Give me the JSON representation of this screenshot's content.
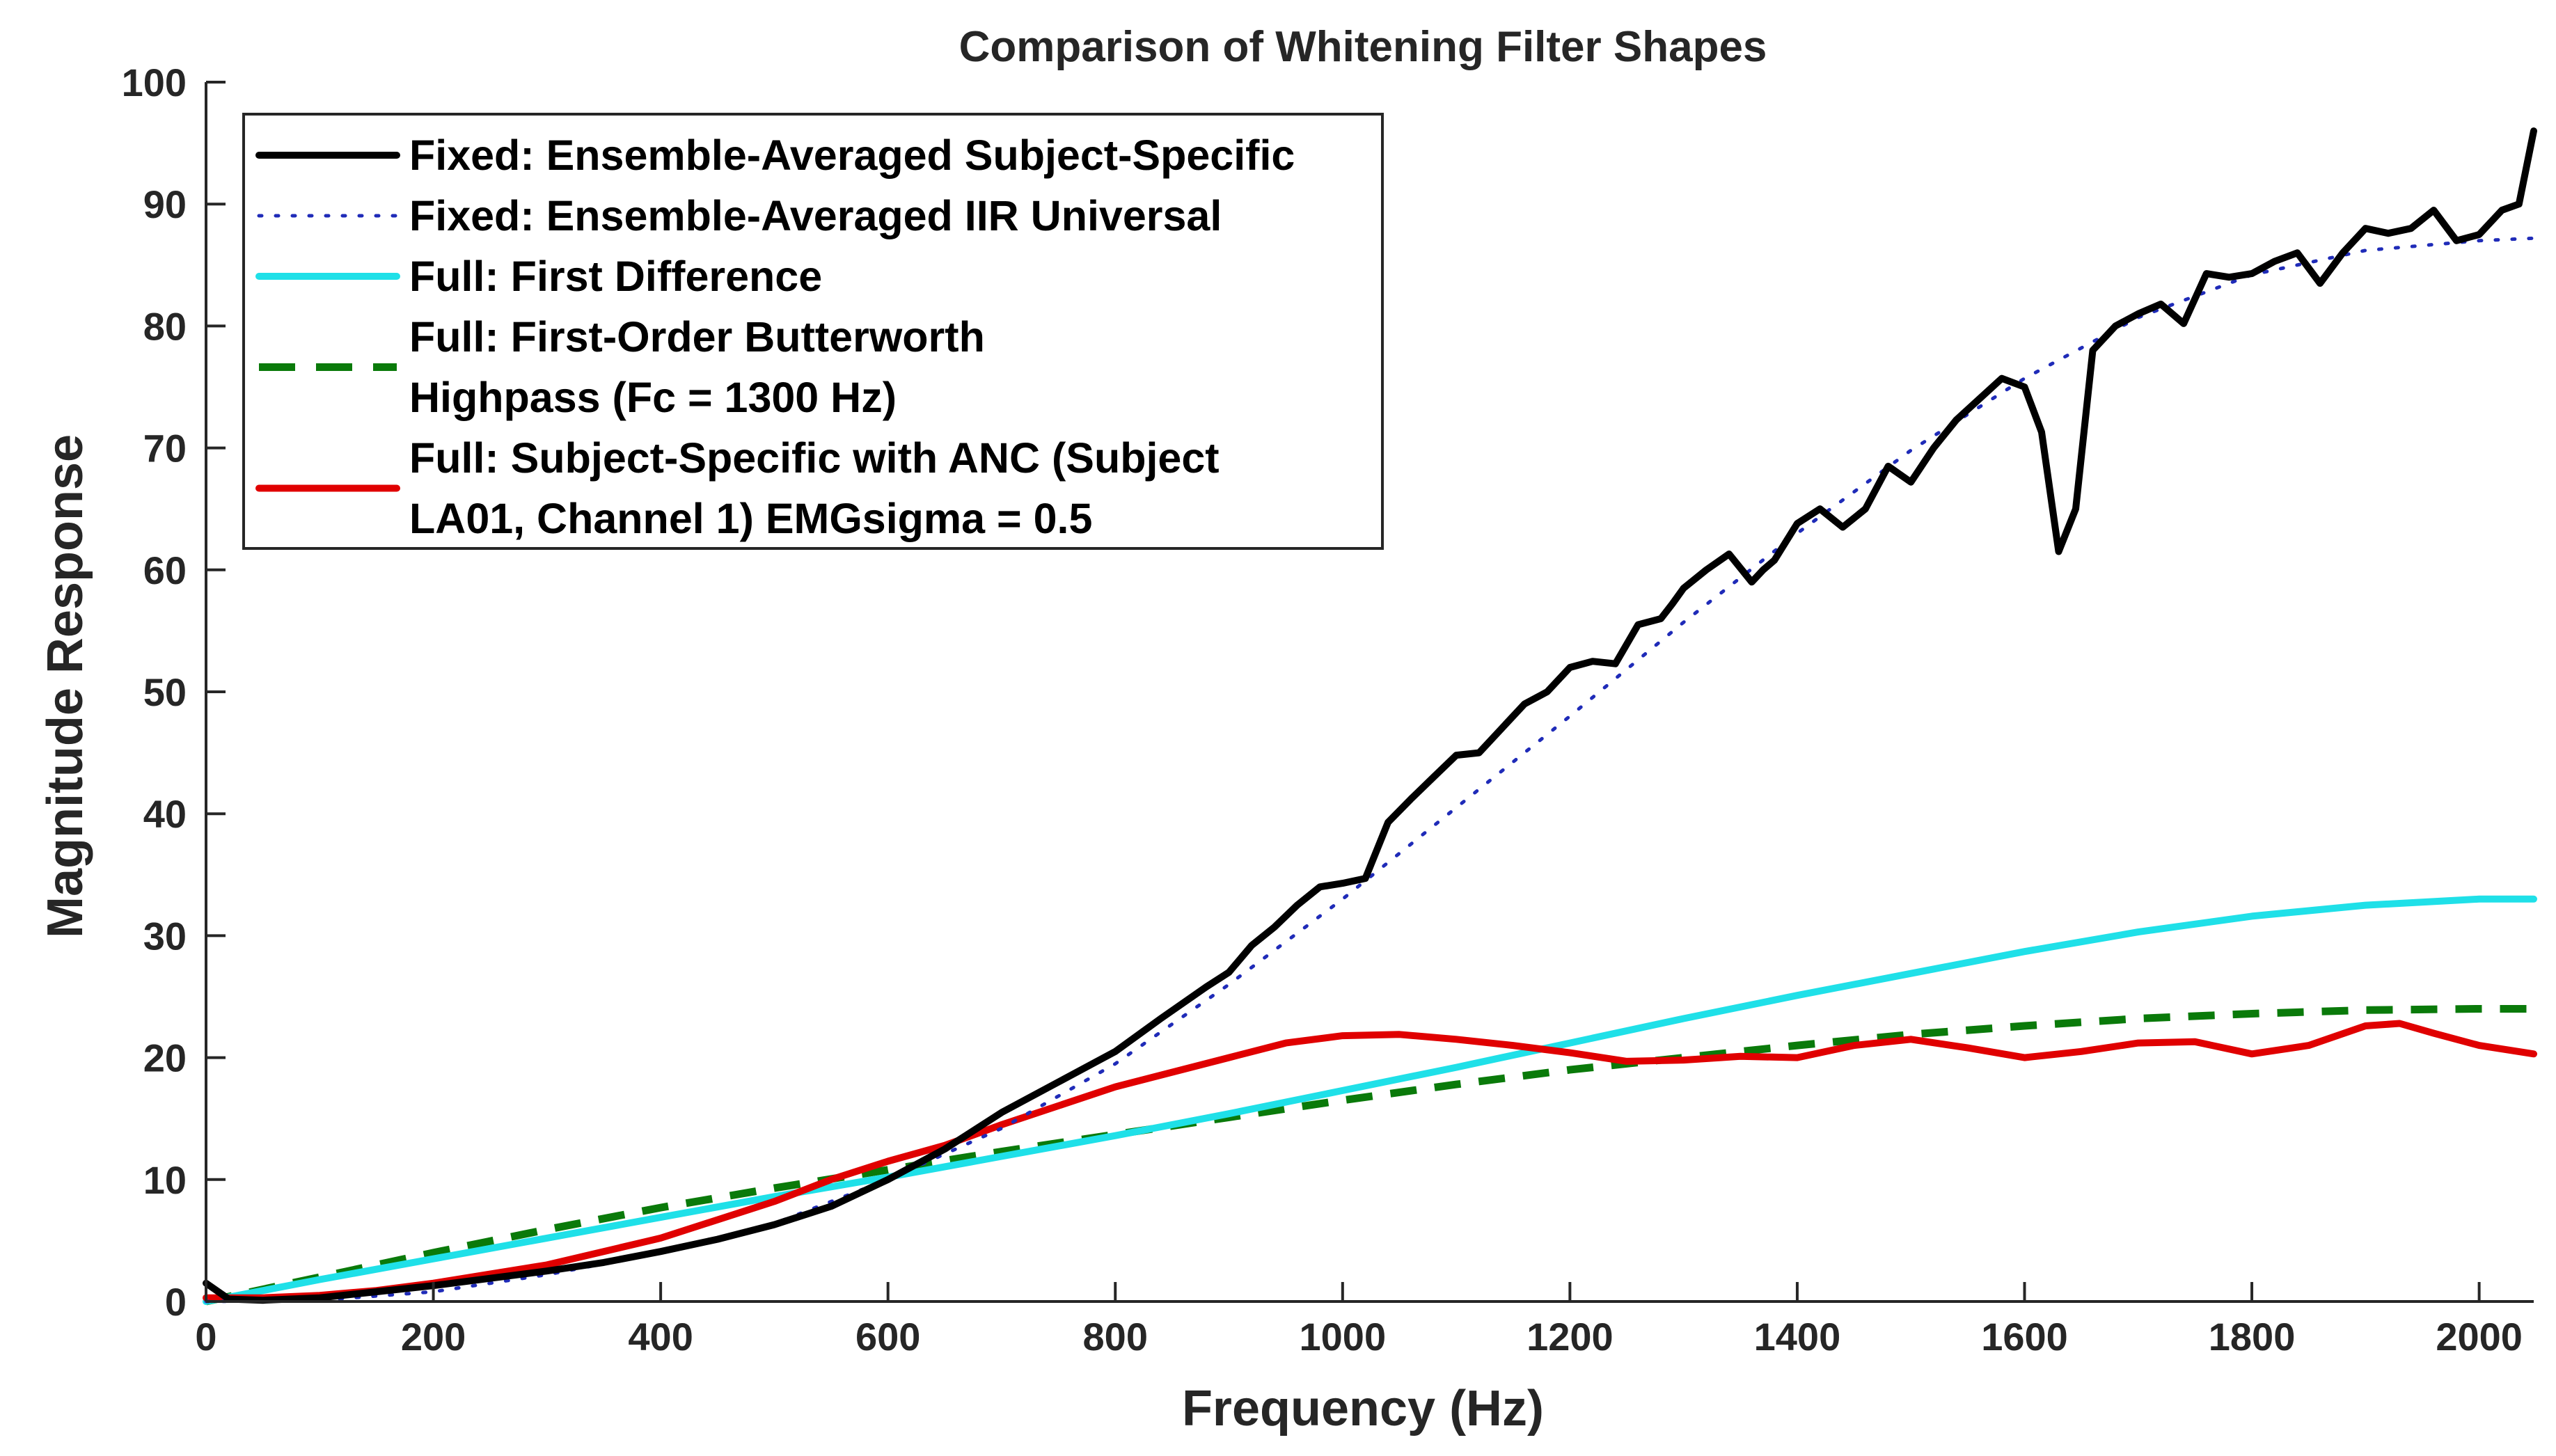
{
  "chart_data": {
    "type": "line",
    "title": "Comparison of Whitening Filter Shapes",
    "xlabel": "Frequency (Hz)",
    "ylabel": "Magnitude Response",
    "xlim": [
      0,
      2048
    ],
    "ylim": [
      0,
      100
    ],
    "grid": false,
    "legend_position": "top-left",
    "x_ticks": [
      "0",
      "200",
      "400",
      "600",
      "800",
      "1000",
      "1200",
      "1400",
      "1600",
      "1800",
      "2000"
    ],
    "y_ticks": [
      "0",
      "10",
      "20",
      "30",
      "40",
      "50",
      "60",
      "70",
      "80",
      "90",
      "100"
    ],
    "series": [
      {
        "name": "Fixed: Ensemble-Averaged Subject-Specific",
        "legend_lines": [
          "Fixed: Ensemble-Averaged Subject-Specific"
        ],
        "color": "#000000",
        "style": "solid",
        "x": [
          0,
          20,
          50,
          100,
          150,
          200,
          250,
          300,
          350,
          400,
          450,
          500,
          550,
          600,
          650,
          700,
          750,
          800,
          840,
          880,
          900,
          920,
          940,
          960,
          980,
          1000,
          1020,
          1040,
          1060,
          1080,
          1100,
          1120,
          1140,
          1160,
          1180,
          1200,
          1220,
          1240,
          1260,
          1280,
          1290,
          1300,
          1320,
          1340,
          1360,
          1370,
          1380,
          1400,
          1420,
          1440,
          1460,
          1480,
          1500,
          1520,
          1540,
          1560,
          1580,
          1600,
          1615,
          1630,
          1645,
          1660,
          1680,
          1700,
          1720,
          1740,
          1760,
          1780,
          1800,
          1820,
          1840,
          1860,
          1880,
          1900,
          1920,
          1940,
          1960,
          1980,
          2000,
          2020,
          2035,
          2048
        ],
        "y": [
          1.5,
          0.2,
          0.1,
          0.3,
          0.8,
          1.3,
          1.9,
          2.5,
          3.2,
          4.1,
          5.1,
          6.3,
          7.8,
          10.0,
          12.5,
          15.5,
          18.0,
          20.5,
          23.2,
          25.8,
          27.0,
          29.2,
          30.7,
          32.5,
          34.0,
          34.3,
          34.7,
          39.3,
          41.2,
          43.0,
          44.8,
          45.0,
          47.0,
          49.0,
          50.0,
          52.0,
          52.5,
          52.3,
          55.5,
          56.0,
          57.2,
          58.5,
          60.0,
          61.3,
          59.0,
          60.0,
          60.8,
          63.8,
          65.0,
          63.5,
          65.0,
          68.5,
          67.2,
          70.0,
          72.3,
          74.0,
          75.7,
          75.0,
          71.3,
          61.5,
          65.0,
          78.0,
          80.0,
          81.0,
          81.8,
          80.2,
          84.3,
          84.0,
          84.3,
          85.3,
          86.0,
          83.5,
          86.0,
          88.0,
          87.6,
          88.0,
          89.5,
          87.0,
          87.5,
          89.5,
          90.0,
          96.0
        ]
      },
      {
        "name": "Fixed: Ensemble-Averaged IIR Universal",
        "legend_lines": [
          "Fixed: Ensemble-Averaged IIR Universal"
        ],
        "color": "#1f2bb8",
        "style": "dotted",
        "x": [
          0,
          100,
          200,
          300,
          400,
          500,
          600,
          700,
          800,
          900,
          1000,
          1100,
          1200,
          1300,
          1400,
          1500,
          1600,
          1700,
          1800,
          1900,
          2000,
          2048
        ],
        "y": [
          0.0,
          0.1,
          0.8,
          2.2,
          4.0,
          6.4,
          10.0,
          14.2,
          19.5,
          26.0,
          33.0,
          40.5,
          48.0,
          55.7,
          63.0,
          69.8,
          75.7,
          80.7,
          84.2,
          86.2,
          87.0,
          87.2
        ]
      },
      {
        "name": "Full: First Difference",
        "legend_lines": [
          "Full: First Difference"
        ],
        "color": "#1fe0e8",
        "style": "solid",
        "x": [
          0,
          100,
          200,
          300,
          400,
          500,
          600,
          700,
          800,
          900,
          1000,
          1100,
          1200,
          1300,
          1400,
          1500,
          1600,
          1700,
          1800,
          1900,
          2000,
          2048
        ],
        "y": [
          0.0,
          1.8,
          3.5,
          5.2,
          6.9,
          8.6,
          10.2,
          11.9,
          13.6,
          15.4,
          17.3,
          19.2,
          21.2,
          23.2,
          25.1,
          26.9,
          28.7,
          30.3,
          31.6,
          32.5,
          33.0,
          33.0
        ]
      },
      {
        "name": "Full: First-Order Butterworth Highpass (Fc = 1300 Hz)",
        "legend_lines": [
          "Full: First-Order Butterworth",
          "Highpass (Fc = 1300 Hz)"
        ],
        "color": "#0a7a0a",
        "style": "dashed",
        "x": [
          0,
          100,
          200,
          300,
          400,
          500,
          600,
          700,
          800,
          900,
          1000,
          1100,
          1200,
          1300,
          1400,
          1500,
          1600,
          1700,
          1800,
          1900,
          2000,
          2048
        ],
        "y": [
          0.0,
          2.0,
          4.0,
          5.9,
          7.7,
          9.3,
          10.8,
          12.3,
          13.7,
          15.1,
          16.5,
          17.8,
          19.0,
          20.0,
          21.0,
          21.9,
          22.6,
          23.2,
          23.6,
          23.9,
          24.0,
          24.0
        ]
      },
      {
        "name": "Full: Subject-Specific with ANC (Subject LA01, Channel 1) EMGsigma = 0.5",
        "legend_lines": [
          "Full: Subject-Specific with ANC (Subject",
          "LA01, Channel 1) EMGsigma = 0.5"
        ],
        "color": "#e00000",
        "style": "solid",
        "x": [
          0,
          50,
          100,
          150,
          200,
          300,
          400,
          500,
          550,
          600,
          650,
          700,
          800,
          900,
          950,
          1000,
          1050,
          1100,
          1150,
          1200,
          1250,
          1300,
          1350,
          1400,
          1450,
          1500,
          1550,
          1600,
          1650,
          1700,
          1750,
          1800,
          1850,
          1900,
          1930,
          1960,
          2000,
          2048
        ],
        "y": [
          0.3,
          0.3,
          0.5,
          0.9,
          1.5,
          3.0,
          5.2,
          8.2,
          10.0,
          11.5,
          12.8,
          14.5,
          17.6,
          20.0,
          21.2,
          21.8,
          21.9,
          21.5,
          21.0,
          20.4,
          19.7,
          19.8,
          20.1,
          20.0,
          21.0,
          21.5,
          20.8,
          20.0,
          20.5,
          21.2,
          21.3,
          20.3,
          21.0,
          22.6,
          22.8,
          22.0,
          21.0,
          20.3
        ]
      }
    ]
  }
}
